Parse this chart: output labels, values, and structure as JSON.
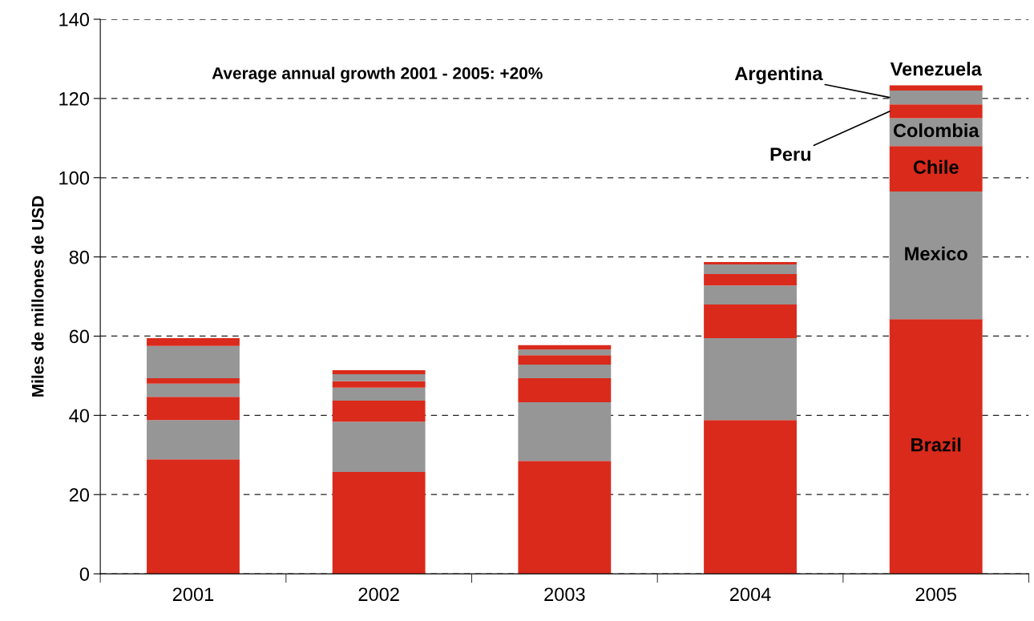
{
  "chart_data": {
    "type": "bar",
    "stacked": true,
    "ylabel": "Miles de millones de USD",
    "annotations": [
      "Average annual growth 2001 - 2005: +20%"
    ],
    "categories": [
      "2001",
      "2002",
      "2003",
      "2004",
      "2005"
    ],
    "series": [
      {
        "name": "Brazil",
        "color": "#d92a1c",
        "values": [
          28.9,
          25.7,
          28.5,
          38.8,
          64.3
        ]
      },
      {
        "name": "Mexico",
        "color": "#969696",
        "values": [
          9.9,
          12.7,
          14.8,
          20.7,
          32.2
        ]
      },
      {
        "name": "Chile",
        "color": "#d92a1c",
        "values": [
          5.9,
          5.3,
          6.1,
          8.5,
          11.5
        ]
      },
      {
        "name": "Colombia",
        "color": "#969696",
        "values": [
          3.3,
          3.3,
          3.4,
          4.8,
          7.0
        ]
      },
      {
        "name": "Peru",
        "color": "#d92a1c",
        "values": [
          1.4,
          1.6,
          2.4,
          2.9,
          3.5
        ]
      },
      {
        "name": "Argentina",
        "color": "#969696",
        "values": [
          8.1,
          1.8,
          1.4,
          2.4,
          3.5
        ]
      },
      {
        "name": "Venezuela",
        "color": "#d92a1c",
        "values": [
          2.0,
          1.0,
          1.1,
          0.6,
          1.3
        ]
      }
    ],
    "ylim": [
      0,
      140
    ],
    "yticks": [
      0,
      20,
      40,
      60,
      80,
      100,
      120,
      140
    ],
    "grid": "y",
    "legend": false
  }
}
